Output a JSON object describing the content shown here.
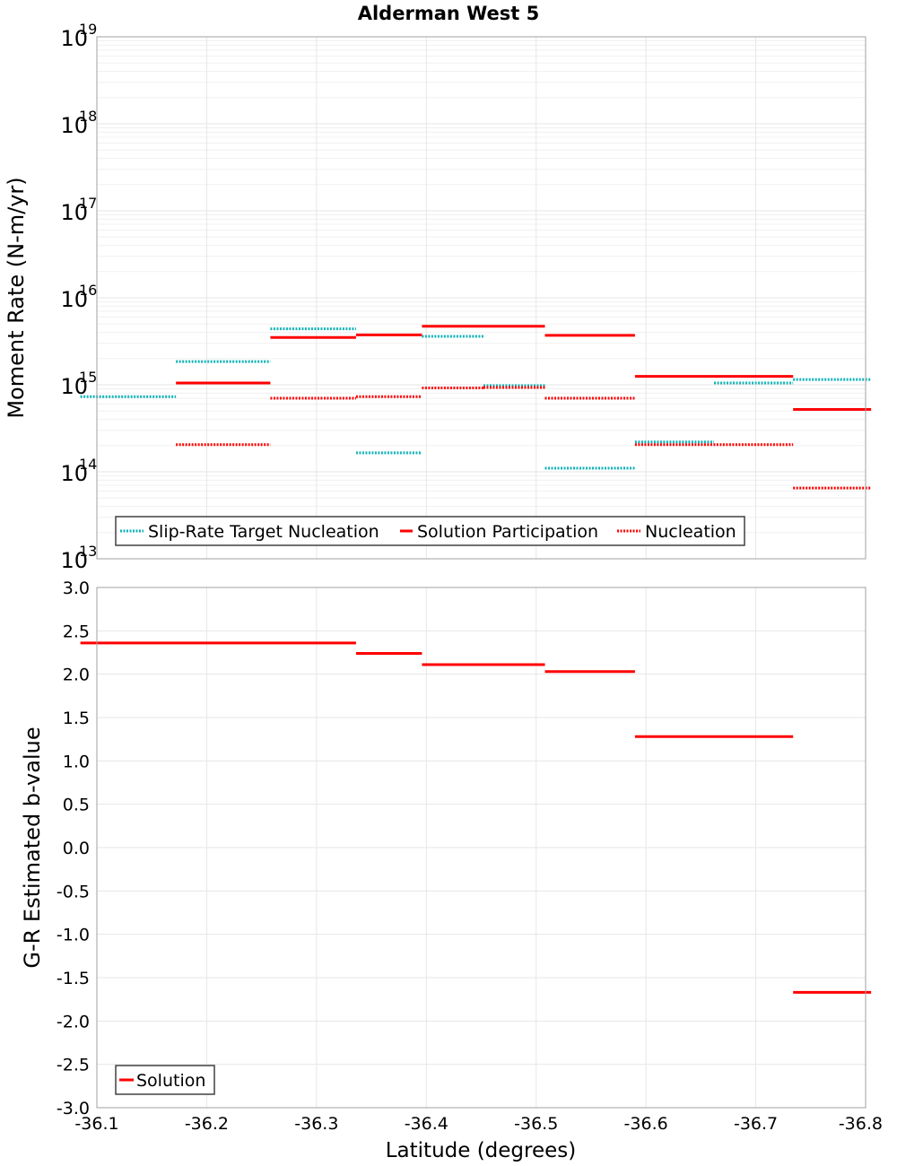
{
  "title": "Alderman West 5",
  "xlabel": "Latitude (degrees)",
  "colors": {
    "target": "#12b3b8",
    "solution": "#ff0000",
    "grid": "#e6e6e6",
    "frame": "#a0a0a0"
  },
  "chart_data": [
    {
      "type": "line",
      "subtype": "step-segments",
      "ylabel": "Moment Rate (N-m/yr)",
      "yscale": "log",
      "ylim_exp": [
        13,
        19
      ],
      "ytick_exps": [
        13,
        14,
        15,
        16,
        17,
        18,
        19
      ],
      "xlim": [
        -36.1,
        -36.8
      ],
      "grid": true,
      "legend_position": "bottom-left",
      "series": [
        {
          "name": "Slip-Rate Target Nucleation",
          "color": "#12b3b8",
          "style": "dotted",
          "segments": [
            {
              "x": [
                -36.085,
                -36.172
              ],
              "y": 730000000000000.0
            },
            {
              "x": [
                -36.172,
                -36.258
              ],
              "y": 1850000000000000.0
            },
            {
              "x": [
                -36.258,
                -36.336
              ],
              "y": 4400000000000000.0
            },
            {
              "x": [
                -36.336,
                -36.396
              ],
              "y": 165000000000000.0
            },
            {
              "x": [
                -36.396,
                -36.452
              ],
              "y": 3600000000000000.0
            },
            {
              "x": [
                -36.452,
                -36.508
              ],
              "y": 980000000000000.0
            },
            {
              "x": [
                -36.508,
                -36.59
              ],
              "y": 110000000000000.0
            },
            {
              "x": [
                -36.59,
                -36.662
              ],
              "y": 220000000000000.0
            },
            {
              "x": [
                -36.662,
                -36.734
              ],
              "y": 1050000000000000.0
            },
            {
              "x": [
                -36.734,
                -36.805
              ],
              "y": 1150000000000000.0
            }
          ]
        },
        {
          "name": "Solution Participation",
          "color": "#ff0000",
          "style": "solid",
          "segments": [
            {
              "x": [
                -36.172,
                -36.258
              ],
              "y": 1050000000000000.0
            },
            {
              "x": [
                -36.258,
                -36.336
              ],
              "y": 3500000000000000.0
            },
            {
              "x": [
                -36.336,
                -36.396
              ],
              "y": 3750000000000000.0
            },
            {
              "x": [
                -36.396,
                -36.508
              ],
              "y": 4700000000000000.0
            },
            {
              "x": [
                -36.508,
                -36.59
              ],
              "y": 3700000000000000.0
            },
            {
              "x": [
                -36.59,
                -36.734
              ],
              "y": 1250000000000000.0
            },
            {
              "x": [
                -36.734,
                -36.805
              ],
              "y": 520000000000000.0
            }
          ]
        },
        {
          "name": "Nucleation",
          "color": "#ff0000",
          "style": "dotted",
          "segments": [
            {
              "x": [
                -36.172,
                -36.258
              ],
              "y": 205000000000000.0
            },
            {
              "x": [
                -36.258,
                -36.336
              ],
              "y": 700000000000000.0
            },
            {
              "x": [
                -36.336,
                -36.396
              ],
              "y": 730000000000000.0
            },
            {
              "x": [
                -36.396,
                -36.452
              ],
              "y": 920000000000000.0
            },
            {
              "x": [
                -36.452,
                -36.508
              ],
              "y": 930000000000000.0
            },
            {
              "x": [
                -36.508,
                -36.59
              ],
              "y": 700000000000000.0
            },
            {
              "x": [
                -36.59,
                -36.734
              ],
              "y": 205000000000000.0
            },
            {
              "x": [
                -36.734,
                -36.805
              ],
              "y": 65000000000000.0
            }
          ]
        }
      ]
    },
    {
      "type": "line",
      "subtype": "step-segments",
      "ylabel": "G-R Estimated b-value",
      "ylim": [
        -3.0,
        3.0
      ],
      "yticks": [
        "3.0",
        "2.5",
        "2.0",
        "1.5",
        "1.0",
        "0.5",
        "0.0",
        "-0.5",
        "-1.0",
        "-1.5",
        "-2.0",
        "-2.5",
        "-3.0"
      ],
      "xlim": [
        -36.1,
        -36.8
      ],
      "xticks": [
        "-36.1",
        "-36.2",
        "-36.3",
        "-36.4",
        "-36.5",
        "-36.6",
        "-36.7",
        "-36.8"
      ],
      "grid": true,
      "legend_position": "bottom-left",
      "series": [
        {
          "name": "Solution",
          "color": "#ff0000",
          "style": "solid",
          "segments": [
            {
              "x": [
                -36.085,
                -36.336
              ],
              "y": 2.36
            },
            {
              "x": [
                -36.336,
                -36.396
              ],
              "y": 2.24
            },
            {
              "x": [
                -36.396,
                -36.508
              ],
              "y": 2.11
            },
            {
              "x": [
                -36.508,
                -36.59
              ],
              "y": 2.03
            },
            {
              "x": [
                -36.59,
                -36.734
              ],
              "y": 1.28
            },
            {
              "x": [
                -36.734,
                -36.805
              ],
              "y": -1.67
            }
          ]
        }
      ]
    }
  ]
}
